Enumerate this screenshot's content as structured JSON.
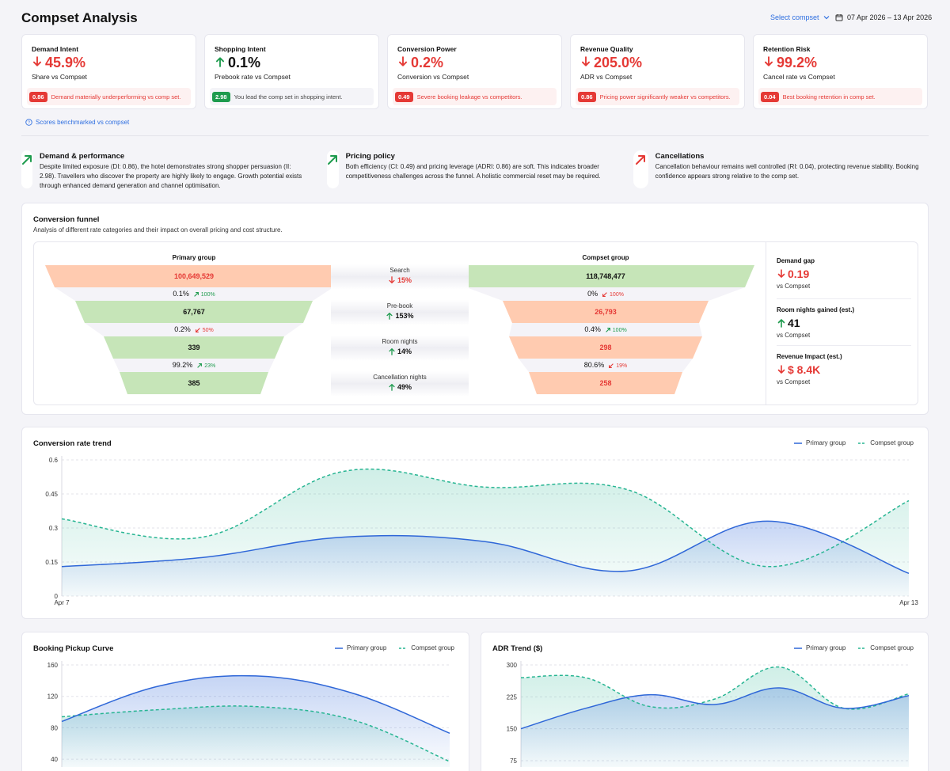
{
  "header": {
    "title": "Compset Analysis",
    "select_label": "Select compset",
    "date_range": "07 Apr 2026 – 13 Apr 2026"
  },
  "kpis": [
    {
      "title": "Demand Intent",
      "direction": "down",
      "value": "45.9%",
      "sub": "Share vs Compset",
      "badge": "0.86",
      "note": "Demand materially underperforming vs comp set.",
      "tone": "red"
    },
    {
      "title": "Shopping Intent",
      "direction": "up",
      "value": "0.1%",
      "sub": "Prebook rate vs Compset",
      "badge": "2.98",
      "note": "You lead the comp set in shopping intent.",
      "tone": "green"
    },
    {
      "title": "Conversion Power",
      "direction": "down",
      "value": "0.2%",
      "sub": "Conversion vs Compset",
      "badge": "0.49",
      "note": "Severe booking leakage vs competitors.",
      "tone": "red"
    },
    {
      "title": "Revenue Quality",
      "direction": "down",
      "value": "205.0%",
      "sub": "ADR vs Compset",
      "badge": "0.86",
      "note": "Pricing power significantly weaker vs competitors.",
      "tone": "red"
    },
    {
      "title": "Retention Risk",
      "direction": "down",
      "value": "99.2%",
      "sub": "Cancel rate vs Compset",
      "badge": "0.04",
      "note": "Best booking retention in comp set.",
      "tone": "red"
    }
  ],
  "benchmark_link": "Scores benchmarked vs compset",
  "insights": [
    {
      "title": "Demand & performance",
      "icon": "arrow-up-right-green",
      "text": "Despite limited exposure (DI: 0.86), the hotel demonstrates strong shopper persuasion (II: 2.98). Travellers who discover the property are highly likely to engage. Growth potential exists through enhanced demand generation and channel optimisation."
    },
    {
      "title": "Pricing policy",
      "icon": "arrow-up-right-green",
      "text": "Both efficiency (CI: 0.49) and pricing leverage (ADRI: 0.86) are soft. This indicates broader competitiveness challenges across the funnel. A holistic commercial reset may be required."
    },
    {
      "title": "Cancellations",
      "icon": "arrow-up-right-red",
      "text": "Cancellation behaviour remains well controlled (RI: 0.04), protecting revenue stability. Booking confidence appears strong relative to the comp set."
    }
  ],
  "funnel": {
    "title": "Conversion funnel",
    "subtitle": "Analysis of different rate categories and their impact on overall pricing and cost structure.",
    "primary_label": "Primary group",
    "compset_label": "Compset group",
    "primary": {
      "values": [
        "100,649,529",
        "67,767",
        "339",
        "385"
      ],
      "rates": [
        {
          "rate": "0.1%",
          "chg": "100%",
          "dir": "up"
        },
        {
          "rate": "0.2%",
          "chg": "50%",
          "dir": "down"
        },
        {
          "rate": "99.2%",
          "chg": "23%",
          "dir": "up"
        }
      ]
    },
    "compset": {
      "values": [
        "118,748,477",
        "26,793",
        "298",
        "258"
      ],
      "rates": [
        {
          "rate": "0%",
          "chg": "100%",
          "dir": "down"
        },
        {
          "rate": "0.4%",
          "chg": "100%",
          "dir": "up"
        },
        {
          "rate": "80.6%",
          "chg": "19%",
          "dir": "down"
        }
      ]
    },
    "stages": [
      {
        "name": "Search",
        "change": "15%",
        "dir": "down"
      },
      {
        "name": "Pre-book",
        "change": "153%",
        "dir": "up"
      },
      {
        "name": "Room nights",
        "change": "14%",
        "dir": "up"
      },
      {
        "name": "Cancellation nights",
        "change": "49%",
        "dir": "up"
      }
    ],
    "side": [
      {
        "title": "Demand gap",
        "value": "0.19",
        "dir": "down",
        "sub": "vs Compset"
      },
      {
        "title": "Room nights gained (est.)",
        "value": "41",
        "dir": "up",
        "sub": "vs Compset"
      },
      {
        "title": "Revenue Impact (est.)",
        "value": "$ 8.4K",
        "dir": "down",
        "sub": "vs Compset"
      }
    ]
  },
  "colors": {
    "primary": "#2f67d8",
    "compset": "#27b592",
    "red": "#e53935",
    "green": "#1e9b4e",
    "funnel_orange": "#ffcbb0",
    "funnel_green": "#c6e5b8"
  },
  "chart_data": [
    {
      "type": "line",
      "title": "Conversion rate trend",
      "x": [
        "Apr 7",
        "",
        "",
        "",
        "",
        "",
        "Apr 13"
      ],
      "xticks_shown": [
        "Apr 7",
        "Apr 13"
      ],
      "yticks": [
        "0",
        "0.15",
        "0.3",
        "0.45",
        "0.6"
      ],
      "ylim": [
        0,
        0.6
      ],
      "grid": true,
      "legend": "top-right",
      "series": [
        {
          "name": "Primary group",
          "values": [
            0.13,
            0.17,
            0.26,
            0.24,
            0.11,
            0.33,
            0.1
          ]
        },
        {
          "name": "Compset group",
          "values": [
            0.34,
            0.26,
            0.55,
            0.48,
            0.47,
            0.13,
            0.42
          ]
        }
      ]
    },
    {
      "type": "line",
      "title": "Booking Pickup Curve",
      "yticks": [
        "40",
        "80",
        "120",
        "160"
      ],
      "ylim": [
        30,
        160
      ],
      "grid": true,
      "legend": "top-right",
      "series": [
        {
          "name": "Primary group",
          "values": [
            88,
            133,
            146,
            124,
            73
          ]
        },
        {
          "name": "Compset group",
          "values": [
            94,
            103,
            107,
            90,
            37
          ]
        }
      ]
    },
    {
      "type": "line",
      "title": "ADR Trend ($)",
      "yticks": [
        "75",
        "150",
        "225",
        "300"
      ],
      "ylim": [
        60,
        300
      ],
      "grid": true,
      "legend": "top-right",
      "series": [
        {
          "name": "Primary group",
          "values": [
            150,
            198,
            230,
            207,
            246,
            198,
            228
          ]
        },
        {
          "name": "Compset group",
          "values": [
            270,
            270,
            202,
            220,
            295,
            198,
            232
          ]
        }
      ]
    }
  ]
}
